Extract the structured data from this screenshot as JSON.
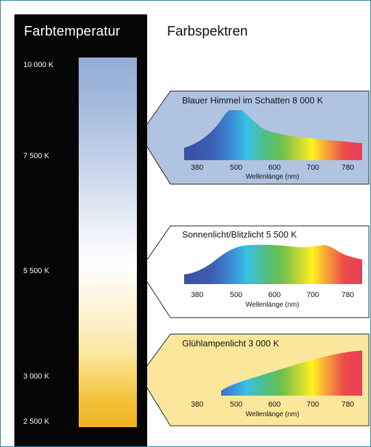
{
  "left_title": "Farbtemperatur",
  "right_title": "Farbspektren",
  "kelvin_labels": [
    "10 000 K",
    "7 500 K",
    "5 500 K",
    "3 000 K",
    "2 500 K"
  ],
  "spectra": [
    {
      "title": "Blauer Himmel im Schatten 8 000 K",
      "fill": "#b0c4e2",
      "ticks": [
        "380",
        "500",
        "600",
        "700",
        "780"
      ],
      "axis_label": "Wellenlänge (nm)"
    },
    {
      "title": "Sonnenlicht/Blitzlicht 5 500 K",
      "fill": "#ffffff",
      "ticks": [
        "380",
        "500",
        "600",
        "700",
        "780"
      ],
      "axis_label": "Wellenlänge (nm)"
    },
    {
      "title": "Glühlampenlicht 3 000 K",
      "fill": "#fbe79c",
      "ticks": [
        "380",
        "500",
        "600",
        "700",
        "780"
      ],
      "axis_label": "Wellenlänge (nm)"
    }
  ]
}
